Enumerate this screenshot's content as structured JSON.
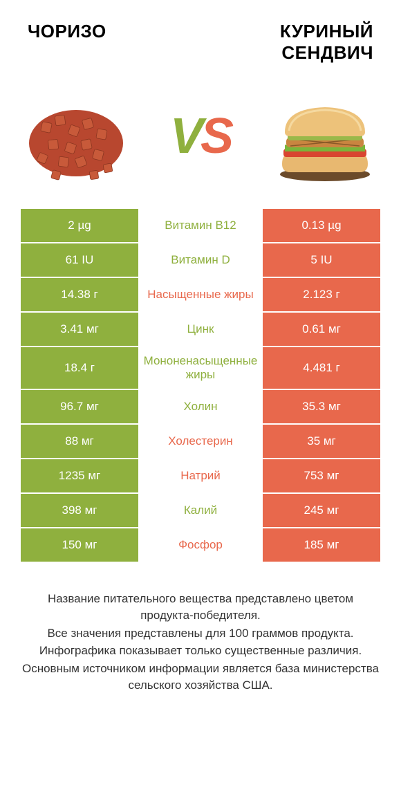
{
  "colors": {
    "green": "#8fb03e",
    "orange": "#e8684c",
    "white": "#ffffff",
    "text": "#333333"
  },
  "header": {
    "left": "ЧОРИЗО",
    "right_line1": "КУРИНЫЙ",
    "right_line2": "СЕНДВИЧ"
  },
  "vs": {
    "v": "V",
    "s": "S"
  },
  "rows": [
    {
      "left": "2 µg",
      "mid": "Витамин B12",
      "right": "0.13 µg",
      "winner": "left"
    },
    {
      "left": "61 IU",
      "mid": "Витамин D",
      "right": "5 IU",
      "winner": "left"
    },
    {
      "left": "14.38 г",
      "mid": "Насыщенные жиры",
      "right": "2.123 г",
      "winner": "right"
    },
    {
      "left": "3.41 мг",
      "mid": "Цинк",
      "right": "0.61 мг",
      "winner": "left"
    },
    {
      "left": "18.4 г",
      "mid": "Мононенасыщенные жиры",
      "right": "4.481 г",
      "winner": "left"
    },
    {
      "left": "96.7 мг",
      "mid": "Холин",
      "right": "35.3 мг",
      "winner": "left"
    },
    {
      "left": "88 мг",
      "mid": "Холестерин",
      "right": "35 мг",
      "winner": "right"
    },
    {
      "left": "1235 мг",
      "mid": "Натрий",
      "right": "753 мг",
      "winner": "right"
    },
    {
      "left": "398 мг",
      "mid": "Калий",
      "right": "245 мг",
      "winner": "left"
    },
    {
      "left": "150 мг",
      "mid": "Фосфор",
      "right": "185 мг",
      "winner": "right"
    }
  ],
  "footer": {
    "l1": "Название питательного вещества представлено цветом продукта-победителя.",
    "l2": "Все значения представлены для 100 граммов продукта.",
    "l3": "Инфографика показывает только существенные различия.",
    "l4": "Основным источником информации является база министерства сельского хозяйства США."
  }
}
